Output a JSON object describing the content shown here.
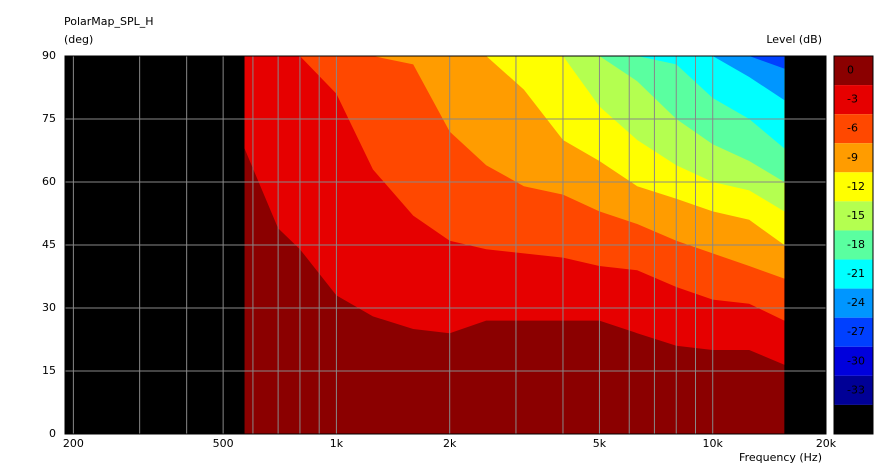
{
  "chart_data": {
    "type": "contour",
    "title": "PolarMap_SPL_H",
    "y_label": "(deg)",
    "x_label": "Frequency (Hz)",
    "colorbar_label": "Level (dB)",
    "log_x": true,
    "grid": true,
    "xlim": [
      190,
      20000
    ],
    "ylim": [
      0,
      90
    ],
    "xticks": [
      200,
      500,
      {
        "value": 1000,
        "label": "1k"
      },
      {
        "value": 2000,
        "label": "2k"
      },
      {
        "value": 5000,
        "label": "5k"
      },
      {
        "value": 10000,
        "label": "10k"
      },
      {
        "value": 20000,
        "label": "20k"
      }
    ],
    "minor_xticks": [
      300,
      400,
      600,
      700,
      800,
      900,
      3000,
      4000,
      6000,
      7000,
      8000,
      9000
    ],
    "yticks": [
      0,
      15,
      30,
      45,
      60,
      75,
      90
    ],
    "colorbar": {
      "levels": [
        0,
        -3,
        -6,
        -9,
        -12,
        -15,
        -18,
        -21,
        -24,
        -27,
        -30,
        -33,
        -36
      ],
      "colors": [
        "#8b0000",
        "#e60000",
        "#ff4800",
        "#ff9c00",
        "#ffff00",
        "#b4ff50",
        "#5affa0",
        "#00ffff",
        "#0096ff",
        "#0040ff",
        "#0000dc",
        "#000096",
        "#000000"
      ]
    },
    "x": [
      570,
      700,
      800,
      1000,
      1250,
      1600,
      2000,
      2500,
      3150,
      4000,
      5000,
      6300,
      8000,
      10000,
      12500,
      15500
    ],
    "series": [
      {
        "color": "#e60000",
        "values": [
          68,
          49,
          44,
          33,
          28,
          25,
          24,
          27,
          27,
          27,
          27,
          24,
          21,
          20,
          20,
          16.5
        ]
      },
      {
        "color": "#ff4800",
        "values": [
          90,
          90,
          90,
          81,
          63,
          52,
          46,
          44,
          43,
          42,
          40,
          39,
          35,
          32,
          31,
          27
        ]
      },
      {
        "color": "#ff9c00",
        "values": [
          90,
          90,
          90,
          90,
          90,
          88,
          72,
          64,
          59,
          57,
          53,
          50,
          46,
          43,
          40,
          37
        ]
      },
      {
        "color": "#ffff00",
        "values": [
          90,
          90,
          90,
          90,
          90,
          90,
          90,
          90,
          82,
          70,
          65,
          59,
          56,
          53,
          51,
          45
        ]
      },
      {
        "color": "#b4ff50",
        "values": [
          90,
          90,
          90,
          90,
          90,
          90,
          90,
          90,
          90,
          90,
          78,
          70,
          64,
          60,
          58,
          53
        ]
      },
      {
        "color": "#5affa0",
        "values": [
          90,
          90,
          90,
          90,
          90,
          90,
          90,
          90,
          90,
          90,
          90,
          84,
          75,
          69,
          65,
          60
        ]
      },
      {
        "color": "#00ffff",
        "values": [
          90,
          90,
          90,
          90,
          90,
          90,
          90,
          90,
          90,
          90,
          90,
          90,
          88,
          80,
          75,
          68
        ]
      },
      {
        "color": "#0096ff",
        "values": [
          90,
          90,
          90,
          90,
          90,
          90,
          90,
          90,
          90,
          90,
          90,
          90,
          90,
          90,
          85,
          79.5
        ]
      },
      {
        "color": "#0040ff",
        "values": [
          90,
          90,
          90,
          90,
          90,
          90,
          90,
          90,
          90,
          90,
          90,
          90,
          90,
          90,
          90,
          87
        ]
      }
    ]
  }
}
